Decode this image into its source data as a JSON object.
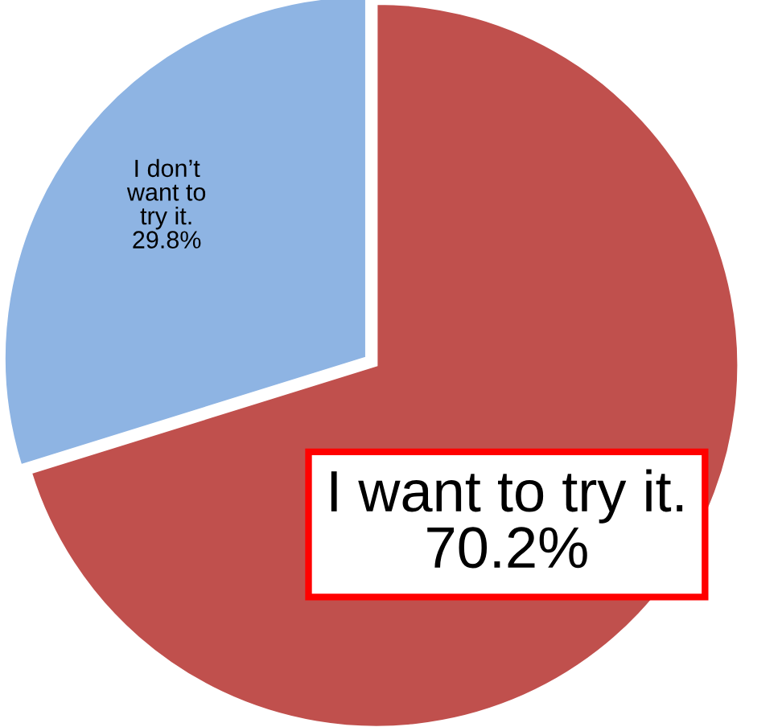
{
  "chart_data": {
    "type": "pie",
    "categories": [
      "I want to try it.",
      "I don’t\nwant to\ntry it."
    ],
    "values": [
      70.2,
      29.8
    ],
    "value_labels": [
      "70.2%",
      "29.8%"
    ],
    "colors": [
      "#c0504d",
      "#8eb4e3"
    ],
    "legend": false
  }
}
